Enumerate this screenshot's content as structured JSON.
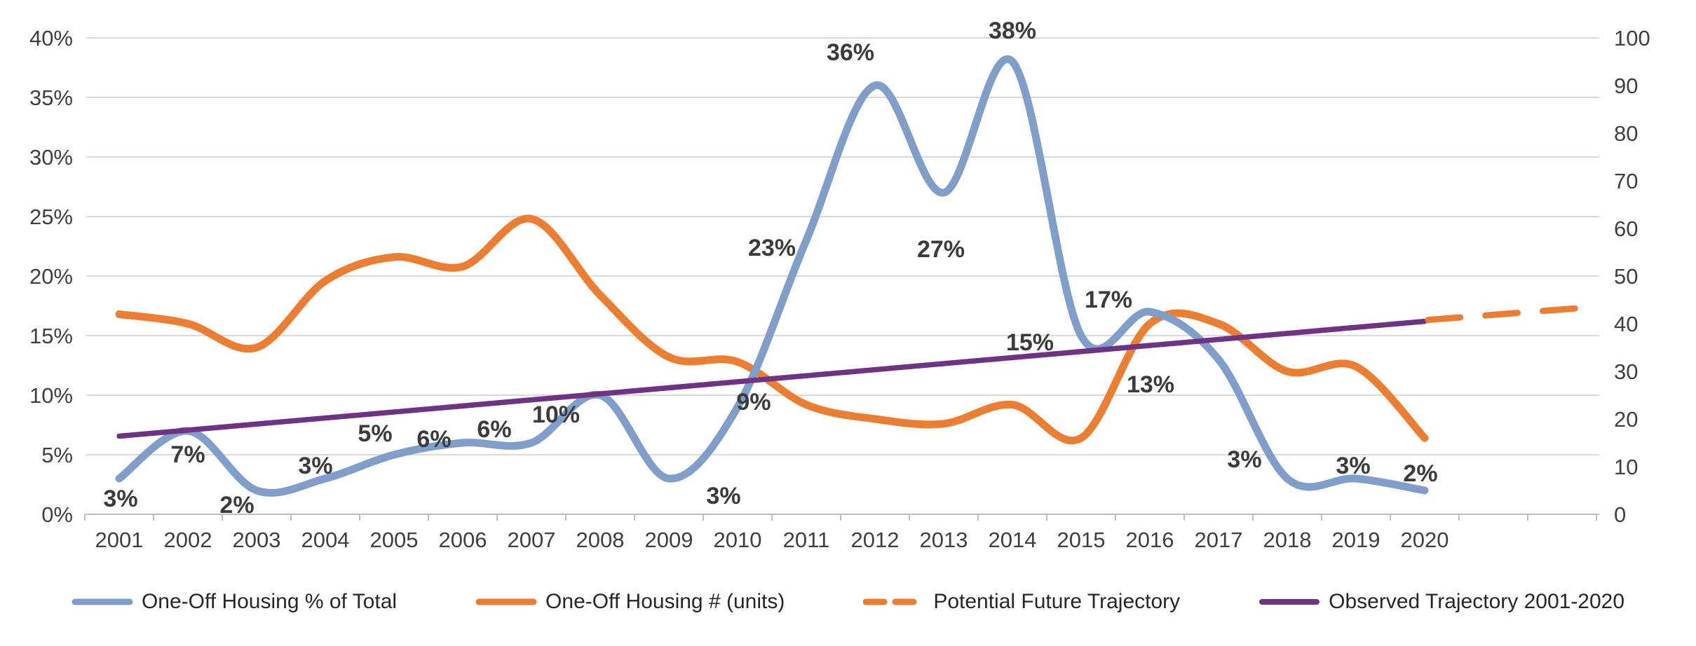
{
  "chart_data": {
    "type": "line",
    "title": "",
    "x_categories": [
      "2001",
      "2002",
      "2003",
      "2004",
      "2005",
      "2006",
      "2007",
      "2008",
      "2009",
      "2010",
      "2011",
      "2012",
      "2013",
      "2014",
      "2015",
      "2016",
      "2017",
      "2018",
      "2019",
      "2020"
    ],
    "left_axis": {
      "min": 0,
      "max": 40,
      "unit": "%",
      "tick_labels": [
        "0%",
        "5%",
        "10%",
        "15%",
        "20%",
        "25%",
        "30%",
        "35%",
        "40%"
      ]
    },
    "right_axis": {
      "min": 0,
      "max": 100,
      "tick_labels": [
        "0",
        "10",
        "20",
        "30",
        "40",
        "50",
        "60",
        "70",
        "80",
        "90",
        "100"
      ]
    },
    "grid": "horizontal-only",
    "series": [
      {
        "name": "One-Off Housing % of Total",
        "axis": "left",
        "line_style": "smooth",
        "color": "#7F9EC9",
        "values": [
          3,
          7,
          2,
          3,
          5,
          6,
          6,
          10,
          3,
          9,
          23,
          36,
          27,
          38,
          15,
          17,
          13,
          3,
          3,
          2
        ],
        "point_labels": [
          "3%",
          "7%",
          "2%",
          "3%",
          "5%",
          "6%",
          "6%",
          "10%",
          "3%",
          "9%",
          "23%",
          "36%",
          "27%",
          "38%",
          "15%",
          "17%",
          "13%",
          "3%",
          "3%",
          "2%"
        ]
      },
      {
        "name": "One-Off Housing # (units)",
        "axis": "right",
        "line_style": "smooth",
        "color": "#ED7D31",
        "values": [
          42,
          40,
          35,
          49,
          54,
          52,
          62,
          46,
          33,
          32,
          23,
          20,
          19,
          23,
          16,
          40,
          40,
          30,
          31,
          16
        ]
      },
      {
        "name": "Potential Future Trajectory",
        "axis": "right",
        "line_style": "dashed-straight",
        "color": "#ED7D31",
        "x_start_year": 2020.05,
        "value_start": 40.8,
        "x_end_year": 2022.45,
        "value_end": 43.5
      },
      {
        "name": "Observed Trajectory 2001-2020",
        "axis": "right",
        "line_style": "straight",
        "color": "#703285",
        "x_start_year": 2001,
        "value_start": 16.4,
        "x_end_year": 2020,
        "value_end": 40.5
      }
    ]
  },
  "legend": {
    "items": [
      {
        "label": "One-Off Housing % of Total",
        "swatch": "solid",
        "color": "#7F9EC9"
      },
      {
        "label": "One-Off Housing # (units)",
        "swatch": "solid",
        "color": "#ED7D31"
      },
      {
        "label": "Potential Future Trajectory",
        "swatch": "dashed",
        "color": "#ED7D31"
      },
      {
        "label": "Observed Trajectory 2001-2020",
        "swatch": "solid",
        "color": "#703285"
      }
    ]
  },
  "style_colors": {
    "gridline": "#D9D9D9",
    "axis_line": "#BFBFBF",
    "axis_text": "#3F3F3F",
    "data_label_text": "#3B3B3B",
    "background": "#FFFFFF"
  }
}
